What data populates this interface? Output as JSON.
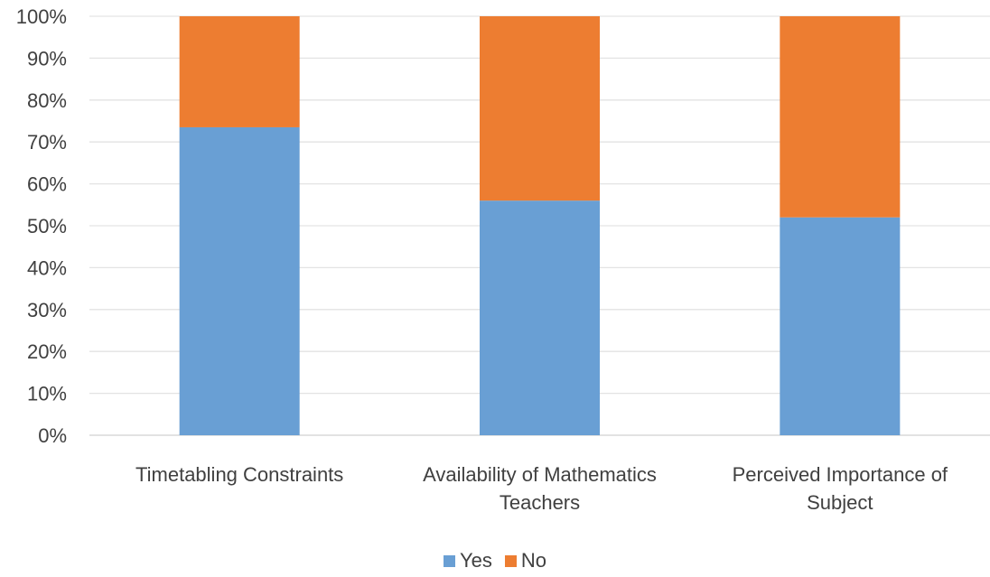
{
  "chart_data": {
    "type": "bar",
    "stacked": true,
    "percent": true,
    "categories": [
      [
        "Timetabling Constraints"
      ],
      [
        "Availability of Mathematics",
        "Teachers"
      ],
      [
        "Perceived Importance of",
        "Subject"
      ]
    ],
    "series": [
      {
        "name": "Yes",
        "color": "#699fd4",
        "values": [
          73.5,
          56,
          52
        ]
      },
      {
        "name": "No",
        "color": "#ed7d31",
        "values": [
          26.5,
          44,
          48
        ]
      }
    ],
    "ylim": [
      0,
      100
    ],
    "yticks": [
      "0%",
      "10%",
      "20%",
      "30%",
      "40%",
      "50%",
      "60%",
      "70%",
      "80%",
      "90%",
      "100%"
    ],
    "grid": true,
    "legend_position": "bottom",
    "title": "",
    "xlabel": "",
    "ylabel": ""
  }
}
